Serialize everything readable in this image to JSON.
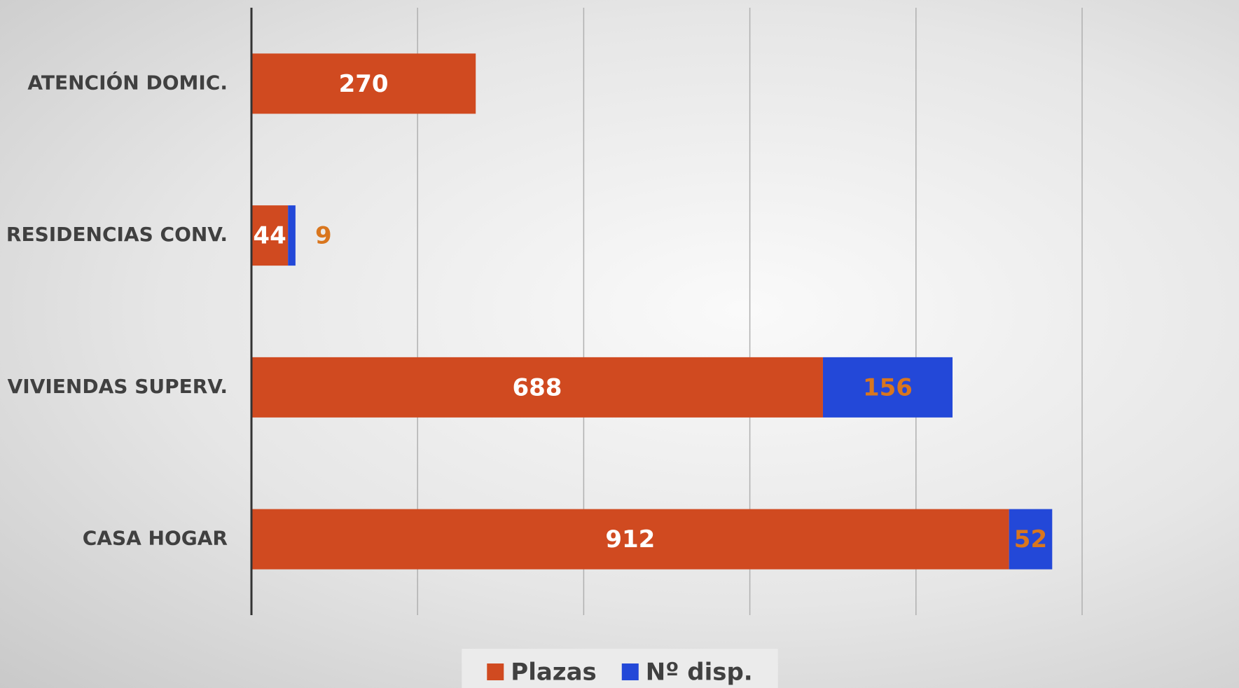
{
  "chart_data": {
    "type": "stacked-barh",
    "categories": [
      "ATENCIÓN DOMIC.",
      "RESIDENCIAS CONV.",
      "VIVIENDAS SUPERV.",
      "CASA HOGAR"
    ],
    "series": [
      {
        "name": "Plazas",
        "color": "#d04a20",
        "label_color": "#ffffff",
        "values": [
          270,
          44,
          688,
          912
        ]
      },
      {
        "name": "Nº disp.",
        "color": "#2348d8",
        "label_color": "#d9761e",
        "values": [
          null,
          9,
          156,
          52
        ]
      }
    ],
    "xlim": [
      0,
      1000
    ],
    "xticks": [
      0,
      200,
      400,
      600,
      800,
      1000
    ],
    "grid": true,
    "legend": "bottom"
  }
}
